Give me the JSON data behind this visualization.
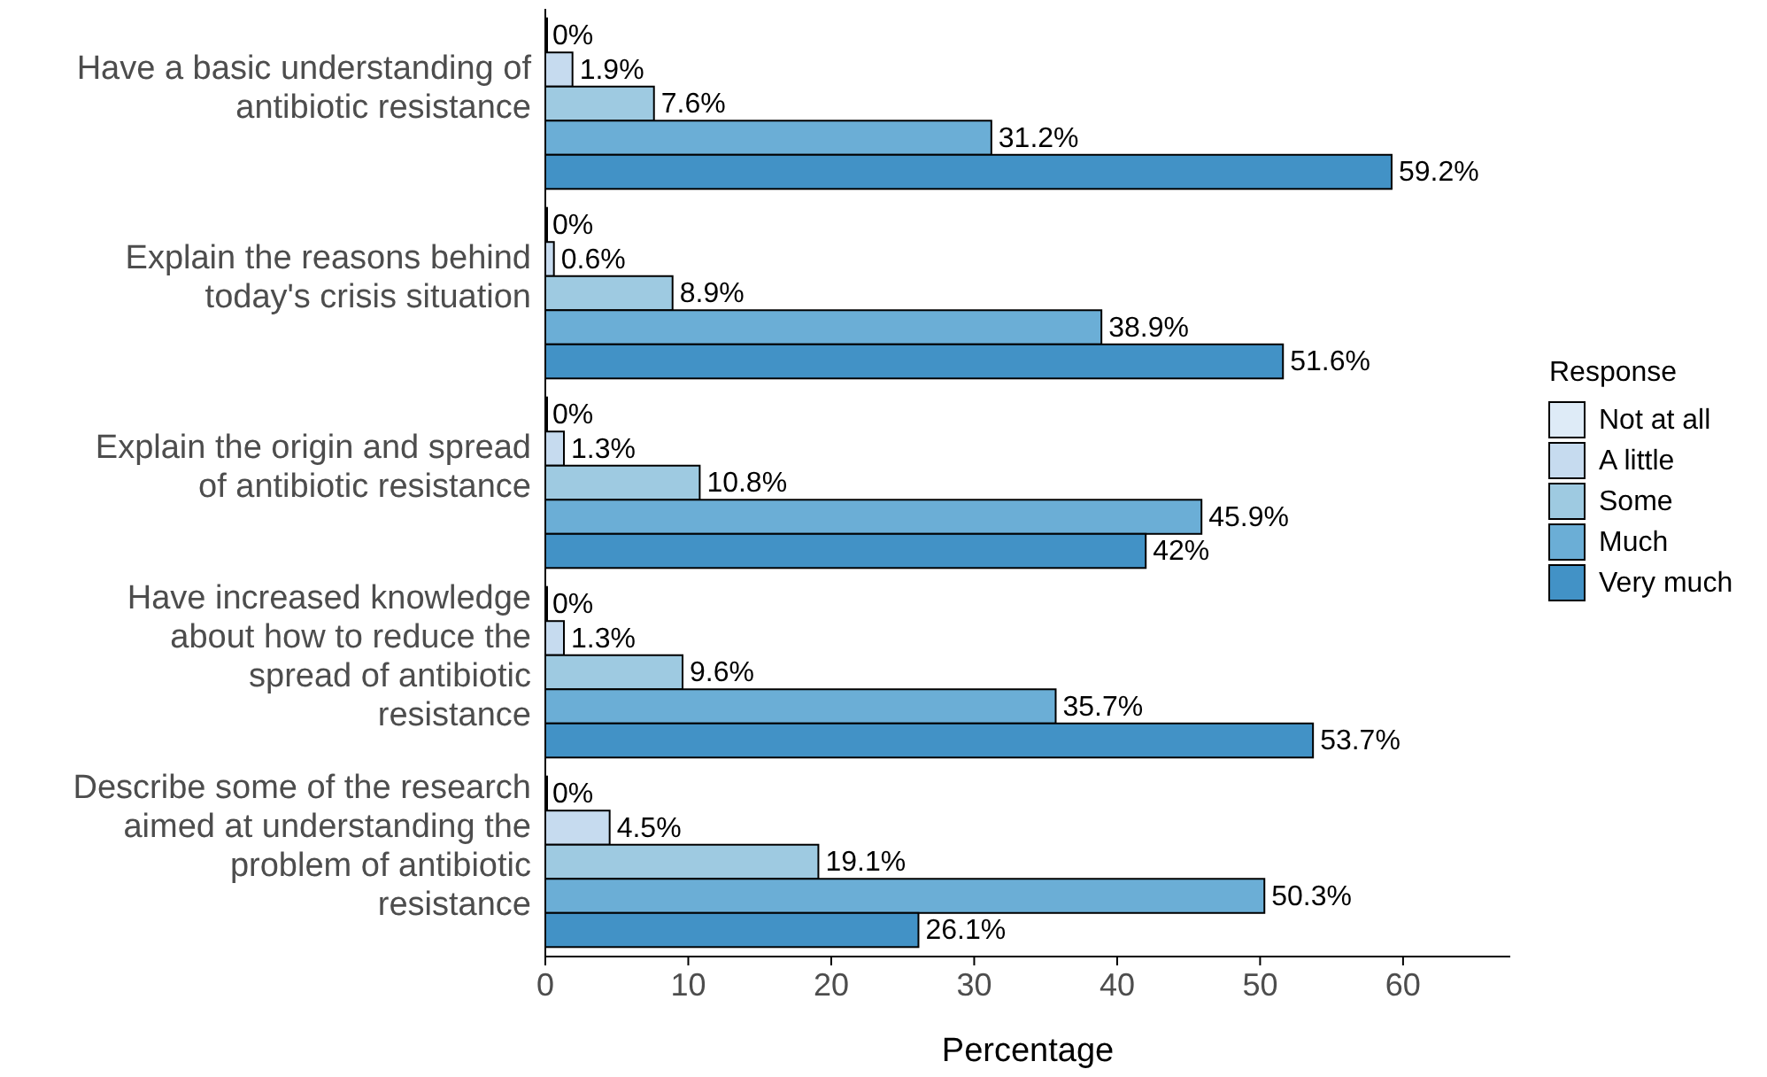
{
  "chart_data": {
    "type": "bar",
    "orientation": "horizontal",
    "xlabel": "Percentage",
    "legend_title": "Response",
    "legend": "right",
    "categories": [
      "Have a basic understanding of antibiotic resistance",
      "Explain the reasons behind today's crisis situation",
      "Explain the origin and spread of antibiotic resistance",
      "Have increased knowledge about how to reduce the spread of antibiotic resistance",
      "Describe some of the research aimed at understanding the problem of antibiotic resistance"
    ],
    "series": [
      {
        "name": "Not at all",
        "color": "#deebf7",
        "values": [
          0,
          0,
          0,
          0,
          0
        ],
        "value_labels": [
          "0%",
          "0%",
          "0%",
          "0%",
          "0%"
        ]
      },
      {
        "name": "A little",
        "color": "#c6dbef",
        "values": [
          1.9,
          0.6,
          1.3,
          1.3,
          4.5
        ],
        "value_labels": [
          "1.9%",
          "0.6%",
          "1.3%",
          "1.3%",
          "4.5%"
        ]
      },
      {
        "name": "Some",
        "color": "#9ecae1",
        "values": [
          7.6,
          8.9,
          10.8,
          9.6,
          19.1
        ],
        "value_labels": [
          "7.6%",
          "8.9%",
          "10.8%",
          "9.6%",
          "19.1%"
        ]
      },
      {
        "name": "Much",
        "color": "#6baed6",
        "values": [
          31.2,
          38.9,
          45.9,
          35.7,
          50.3
        ],
        "value_labels": [
          "31.2%",
          "38.9%",
          "45.9%",
          "35.7%",
          "50.3%"
        ]
      },
      {
        "name": "Very much",
        "color": "#4292c6",
        "values": [
          59.2,
          51.6,
          42,
          53.7,
          26.1
        ],
        "value_labels": [
          "59.2%",
          "51.6%",
          "42%",
          "53.7%",
          "26.1%"
        ]
      }
    ],
    "xlim": [
      0,
      67.5
    ],
    "xticks": [
      0,
      10,
      20,
      30,
      40,
      50,
      60
    ],
    "grid": false
  }
}
